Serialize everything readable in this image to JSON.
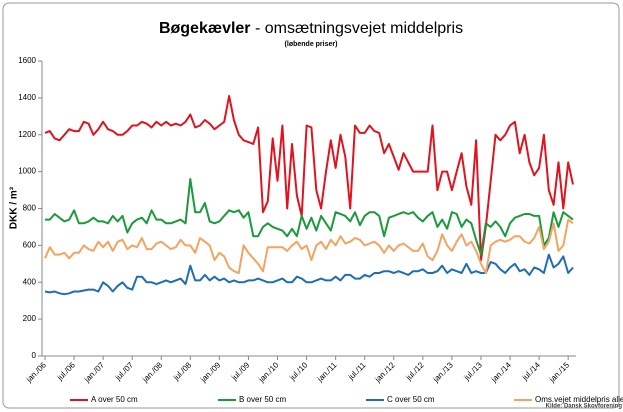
{
  "chart_data": {
    "type": "line",
    "title_bold": "Bøgekævler",
    "title": "- omsætningsvejet middelpris",
    "subtitle": "(løbende priser)",
    "y_label": "DKK / m³",
    "source": "Kilde: Dansk Skovforening",
    "categories": [
      "jan./06",
      null,
      null,
      null,
      null,
      null,
      "jul./06",
      null,
      null,
      null,
      null,
      null,
      "jan./07",
      null,
      null,
      null,
      null,
      null,
      "jul./07",
      null,
      null,
      null,
      null,
      null,
      "jan./08",
      null,
      null,
      null,
      null,
      null,
      "jul./08",
      null,
      null,
      null,
      null,
      null,
      "jan./09",
      null,
      null,
      null,
      null,
      null,
      "jul./09",
      null,
      null,
      null,
      null,
      null,
      "jan./10",
      null,
      null,
      null,
      null,
      null,
      "jul./10",
      null,
      null,
      null,
      null,
      null,
      "jan./11",
      null,
      null,
      null,
      null,
      null,
      "jul./11",
      null,
      null,
      null,
      null,
      null,
      "jan./12",
      null,
      null,
      null,
      null,
      null,
      "jul./12",
      null,
      null,
      null,
      null,
      null,
      "jan./13",
      null,
      null,
      null,
      null,
      null,
      "jul./13",
      null,
      null,
      null,
      null,
      null,
      "jan./14",
      null,
      null,
      null,
      null,
      null,
      "jul./14",
      null,
      null,
      null,
      null,
      null,
      "jan./15",
      null
    ],
    "ylim": [
      0,
      1600
    ],
    "yticks": [
      0,
      200,
      400,
      600,
      800,
      1000,
      1200,
      1400,
      1600
    ],
    "grid": false,
    "series": [
      {
        "name": "A over 50 cm",
        "color": "#e0141e",
        "values": [
          1210,
          1220,
          1180,
          1170,
          1200,
          1230,
          1220,
          1220,
          1270,
          1260,
          1200,
          1230,
          1270,
          1230,
          1220,
          1200,
          1200,
          1220,
          1250,
          1250,
          1270,
          1260,
          1240,
          1270,
          1250,
          1270,
          1250,
          1260,
          1250,
          1270,
          1310,
          1240,
          1250,
          1280,
          1260,
          1230,
          1250,
          1270,
          1410,
          1280,
          1200,
          1170,
          1160,
          1150,
          1240,
          780,
          840,
          1180,
          950,
          1250,
          800,
          1150,
          870,
          760,
          1250,
          1240,
          900,
          800,
          1000,
          1170,
          1020,
          1200,
          1080,
          800,
          1250,
          1210,
          1210,
          1250,
          1220,
          1210,
          1100,
          1150,
          1080,
          1010,
          1100,
          1050,
          1000,
          1000,
          1000,
          1000,
          1250,
          900,
          1000,
          1000,
          900,
          1000,
          1100,
          920,
          820,
          1170,
          520,
          700,
          950,
          1200,
          1170,
          1200,
          1250,
          1270,
          1100,
          1200,
          1050,
          980,
          1020,
          1200,
          900,
          820,
          1050,
          800,
          1050,
          930
        ]
      },
      {
        "name": "B over 50 cm",
        "color": "#1a9a3a",
        "values": [
          740,
          740,
          770,
          750,
          730,
          740,
          790,
          720,
          720,
          730,
          750,
          730,
          730,
          720,
          760,
          730,
          760,
          670,
          720,
          740,
          750,
          720,
          790,
          740,
          740,
          720,
          720,
          730,
          740,
          720,
          960,
          780,
          780,
          830,
          730,
          720,
          730,
          760,
          790,
          780,
          790,
          750,
          780,
          650,
          650,
          700,
          720,
          700,
          690,
          680,
          650,
          690,
          650,
          760,
          690,
          750,
          680,
          760,
          720,
          680,
          780,
          770,
          760,
          730,
          780,
          710,
          760,
          780,
          780,
          760,
          650,
          750,
          760,
          770,
          780,
          770,
          780,
          750,
          730,
          760,
          780,
          700,
          740,
          690,
          780,
          770,
          700,
          740,
          720,
          630,
          550,
          720,
          700,
          730,
          700,
          650,
          720,
          750,
          760,
          770,
          770,
          760,
          760,
          600,
          640,
          780,
          700,
          780,
          760,
          740
        ]
      },
      {
        "name": "C over 50 cm",
        "color": "#1f6db5",
        "values": [
          350,
          345,
          350,
          340,
          335,
          340,
          350,
          350,
          355,
          360,
          360,
          350,
          400,
          380,
          350,
          380,
          400,
          370,
          360,
          430,
          430,
          400,
          400,
          390,
          400,
          410,
          400,
          410,
          420,
          390,
          490,
          410,
          410,
          440,
          410,
          430,
          410,
          420,
          400,
          410,
          400,
          400,
          410,
          410,
          420,
          410,
          400,
          400,
          410,
          420,
          400,
          400,
          430,
          420,
          400,
          400,
          410,
          420,
          410,
          410,
          430,
          410,
          440,
          440,
          420,
          420,
          440,
          430,
          450,
          450,
          460,
          460,
          450,
          460,
          450,
          440,
          460,
          460,
          470,
          450,
          450,
          460,
          490,
          450,
          470,
          460,
          450,
          500,
          450,
          460,
          450,
          450,
          510,
          500,
          470,
          450,
          480,
          500,
          460,
          470,
          440,
          480,
          470,
          450,
          550,
          480,
          500,
          540,
          450,
          480
        ]
      },
      {
        "name": "Oms.vejet middelpris alle",
        "color": "#f4a460",
        "values": [
          530,
          590,
          550,
          550,
          560,
          530,
          560,
          560,
          600,
          580,
          570,
          620,
          590,
          620,
          570,
          620,
          630,
          580,
          600,
          590,
          640,
          580,
          580,
          610,
          620,
          600,
          580,
          590,
          630,
          600,
          600,
          560,
          640,
          620,
          600,
          520,
          560,
          540,
          480,
          460,
          450,
          600,
          560,
          530,
          500,
          460,
          590,
          590,
          590,
          590,
          570,
          600,
          620,
          580,
          600,
          520,
          600,
          620,
          580,
          630,
          600,
          650,
          610,
          620,
          640,
          630,
          600,
          610,
          620,
          600,
          560,
          600,
          570,
          600,
          610,
          590,
          570,
          570,
          610,
          540,
          520,
          570,
          660,
          600,
          570,
          620,
          660,
          600,
          620,
          570,
          500,
          450,
          600,
          620,
          630,
          620,
          630,
          650,
          650,
          620,
          610,
          640,
          700,
          580,
          620,
          720,
          570,
          600,
          740,
          720
        ]
      }
    ]
  }
}
